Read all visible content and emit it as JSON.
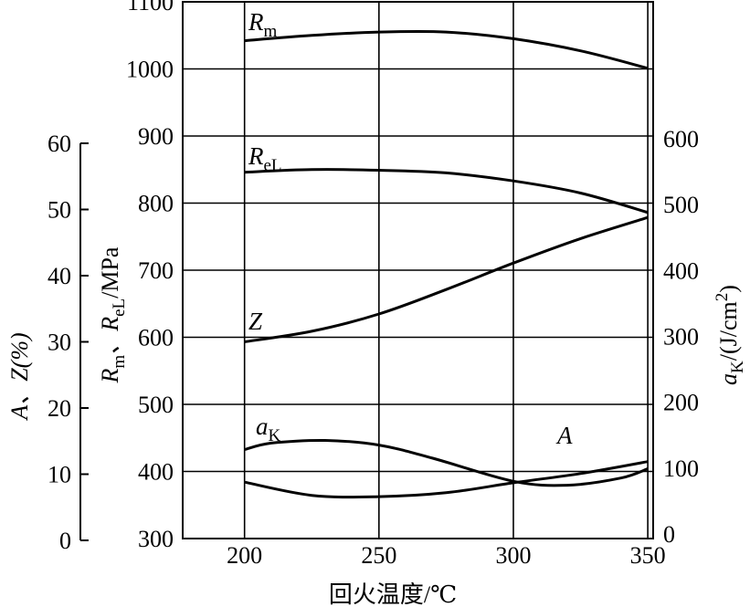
{
  "chart_data": {
    "type": "line",
    "xlabel": "回火温度/℃",
    "x_ticks": [
      200,
      250,
      300,
      350
    ],
    "xlim": [
      177,
      352
    ],
    "axes": {
      "strength": {
        "label": {
          "main": "R",
          "sub1": "m",
          "sep": "、R",
          "sub2": "eL",
          "unit": "/MPa"
        },
        "ylim": [
          300,
          1100
        ],
        "ticks": [
          300,
          400,
          500,
          600,
          700,
          800,
          900,
          1000,
          1100
        ]
      },
      "ductility": {
        "label": "A、Z(%)",
        "ylim": [
          0,
          60
        ],
        "ticks": [
          0,
          10,
          20,
          30,
          40,
          50,
          60
        ]
      },
      "impact": {
        "label": {
          "main": "a",
          "sub": "K",
          "unit": "/(J/cm",
          "sup": "2",
          "close": ")"
        },
        "ylim": [
          0,
          600
        ],
        "ticks": [
          0,
          100,
          200,
          300,
          400,
          500,
          600
        ]
      }
    },
    "series": [
      {
        "name": "R",
        "sub": "m",
        "axis": "strength",
        "x": [
          200,
          225,
          250,
          275,
          300,
          325,
          350
        ],
        "y": [
          1042,
          1050,
          1055,
          1055,
          1045,
          1027,
          1001
        ]
      },
      {
        "name": "R",
        "sub": "eL",
        "axis": "strength",
        "x": [
          200,
          225,
          250,
          275,
          300,
          325,
          350
        ],
        "y": [
          846,
          850,
          849,
          845,
          833,
          815,
          786
        ]
      },
      {
        "name": "Z",
        "sub": "",
        "axis": "ductility",
        "x": [
          200,
          225,
          250,
          275,
          300,
          325,
          350
        ],
        "y": [
          30.0,
          31.6,
          34.2,
          37.9,
          41.9,
          45.6,
          48.8
        ]
      },
      {
        "name": "A",
        "sub": "",
        "axis": "ductility",
        "x": [
          200,
          225,
          250,
          275,
          300,
          325,
          350
        ],
        "y": [
          8.8,
          6.8,
          6.6,
          7.2,
          8.7,
          10.1,
          11.9
        ]
      },
      {
        "name": "a",
        "sub": "K",
        "axis": "impact",
        "x": [
          200,
          210,
          230,
          250,
          270,
          300,
          320,
          340,
          350
        ],
        "y": [
          128,
          138,
          142,
          135,
          115,
          80,
          74,
          85,
          99
        ]
      }
    ]
  }
}
